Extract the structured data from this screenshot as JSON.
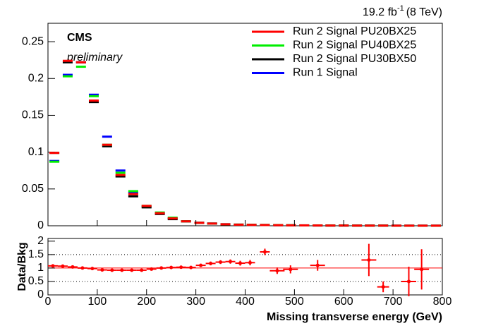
{
  "chart_data": [
    {
      "type": "histogram-markers",
      "lumi": "19.2 fb",
      "lumi_sup": "-1",
      "energy": "(8 TeV)",
      "experiment": "CMS",
      "status": "preliminary",
      "x": [
        13,
        40,
        67,
        93,
        120,
        147,
        173,
        200,
        227,
        253,
        280,
        307,
        333,
        360,
        387,
        413,
        440,
        467,
        493,
        520,
        547,
        573,
        600,
        627,
        653,
        680,
        707,
        733,
        760,
        787
      ],
      "series": [
        {
          "name": "Run 1 Signal",
          "color": "#0000ff",
          "values": [
            0.088,
            0.205,
            0.222,
            0.178,
            0.121,
            0.075,
            0.045,
            0.026,
            0.017,
            0.01,
            0.006,
            0.004,
            0.003,
            0.002,
            0.0015,
            0.0012,
            0.001,
            0.0008,
            0.0006,
            0.0005,
            0.0004,
            0.0003,
            0.0003,
            0.0002,
            0.0002,
            0.0002,
            0.0001,
            0.0001,
            0.0001,
            0.0001
          ]
        },
        {
          "name": "Run 2 Signal PU30BX50",
          "color": "#000000",
          "values": [
            0.099,
            0.222,
            0.222,
            0.168,
            0.108,
            0.067,
            0.04,
            0.025,
            0.016,
            0.009,
            0.006,
            0.004,
            0.003,
            0.002,
            0.0015,
            0.0012,
            0.001,
            0.0008,
            0.0006,
            0.0005,
            0.0004,
            0.0003,
            0.0003,
            0.0002,
            0.0002,
            0.0002,
            0.0001,
            0.0001,
            0.0001,
            0.0001
          ]
        },
        {
          "name": "Run 2 Signal PU40BX25",
          "color": "#00ee00",
          "values": [
            0.087,
            0.203,
            0.216,
            0.176,
            0.11,
            0.072,
            0.047,
            0.027,
            0.018,
            0.011,
            0.006,
            0.004,
            0.003,
            0.002,
            0.0016,
            0.0013,
            0.0011,
            0.0009,
            0.0007,
            0.0005,
            0.0004,
            0.0003,
            0.0003,
            0.0002,
            0.0002,
            0.0002,
            0.0001,
            0.0001,
            0.0001,
            0.0001
          ]
        },
        {
          "name": "Run 2 Signal PU20BX25",
          "color": "#ff0000",
          "values": [
            0.099,
            0.224,
            0.222,
            0.17,
            0.11,
            0.069,
            0.043,
            0.027,
            0.017,
            0.01,
            0.006,
            0.004,
            0.003,
            0.002,
            0.0015,
            0.0012,
            0.001,
            0.0008,
            0.0006,
            0.0005,
            0.0004,
            0.0003,
            0.0003,
            0.0002,
            0.0002,
            0.0002,
            0.0001,
            0.0001,
            0.0001,
            0.0001
          ]
        }
      ],
      "legend_order": [
        3,
        2,
        1,
        0
      ],
      "xlim": [
        0,
        800
      ],
      "ylim": [
        0,
        0.275
      ],
      "yticks": [
        0,
        0.05,
        0.1,
        0.15,
        0.2,
        0.25
      ]
    },
    {
      "type": "ratio",
      "ylabel": "Data/Bkg",
      "xlabel": "Missing transverse energy (GeV)",
      "x": [
        10,
        30,
        50,
        70,
        90,
        110,
        130,
        150,
        170,
        190,
        210,
        230,
        250,
        270,
        290,
        310,
        330,
        350,
        370,
        390,
        410,
        440,
        465,
        492,
        547,
        651,
        680,
        732,
        758
      ],
      "xerr": [
        10,
        10,
        10,
        10,
        10,
        10,
        10,
        10,
        10,
        10,
        10,
        10,
        10,
        10,
        10,
        10,
        10,
        10,
        10,
        10,
        10,
        10,
        15,
        15,
        15,
        15,
        12,
        15,
        15
      ],
      "values": [
        1.08,
        1.07,
        1.04,
        1.0,
        0.98,
        0.93,
        0.92,
        0.92,
        0.92,
        0.92,
        0.96,
        1.0,
        1.02,
        1.03,
        1.02,
        1.1,
        1.17,
        1.22,
        1.24,
        1.18,
        1.2,
        1.6,
        0.9,
        0.95,
        1.1,
        1.3,
        0.3,
        0.5,
        0.95
      ],
      "errors": [
        0.03,
        0.03,
        0.03,
        0.03,
        0.03,
        0.03,
        0.03,
        0.03,
        0.03,
        0.04,
        0.04,
        0.04,
        0.05,
        0.05,
        0.06,
        0.06,
        0.07,
        0.07,
        0.08,
        0.09,
        0.1,
        0.12,
        0.12,
        0.15,
        0.2,
        0.6,
        0.2,
        0.55,
        0.75
      ],
      "color": "#ff0000",
      "ref_line": 1,
      "dotted_lines": [
        0.5,
        1.5
      ],
      "xlim": [
        0,
        800
      ],
      "ylim": [
        0,
        2.1
      ],
      "xticks": [
        0,
        100,
        200,
        300,
        400,
        500,
        600,
        700,
        800
      ],
      "yticks": [
        0,
        0.5,
        1,
        1.5,
        2
      ]
    }
  ]
}
